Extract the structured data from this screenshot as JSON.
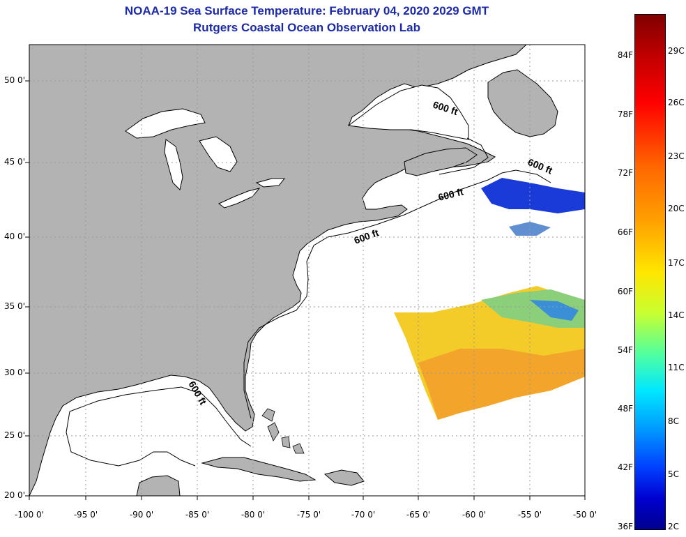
{
  "title_line1": "NOAA-19 Sea Surface Temperature:  February 04, 2020 2029 GMT",
  "title_line2": "Rutgers Coastal Ocean Observation Lab",
  "lat_labels": [
    "50 0'",
    "45 0'",
    "40 0'",
    "35 0'",
    "30 0'",
    "25 0'",
    "20 0'"
  ],
  "lon_labels": [
    "-100 0'",
    "-95 0'",
    "-90 0'",
    "-85 0'",
    "-80 0'",
    "-75 0'",
    "-70 0'",
    "-65 0'",
    "-60 0'",
    "-55 0'",
    "-50 0'"
  ],
  "contour_label": "600 ft",
  "colorbar": {
    "fahrenheit": [
      "84F",
      "78F",
      "72F",
      "66F",
      "60F",
      "54F",
      "48F",
      "42F",
      "36F"
    ],
    "celsius": [
      "29C",
      "26C",
      "23C",
      "20C",
      "17C",
      "14C",
      "11C",
      "8C",
      "5C",
      "2C"
    ]
  },
  "colors": {
    "title": "#1c2aa6",
    "land": "#b3b3b3",
    "ocean": "#ffffff"
  }
}
